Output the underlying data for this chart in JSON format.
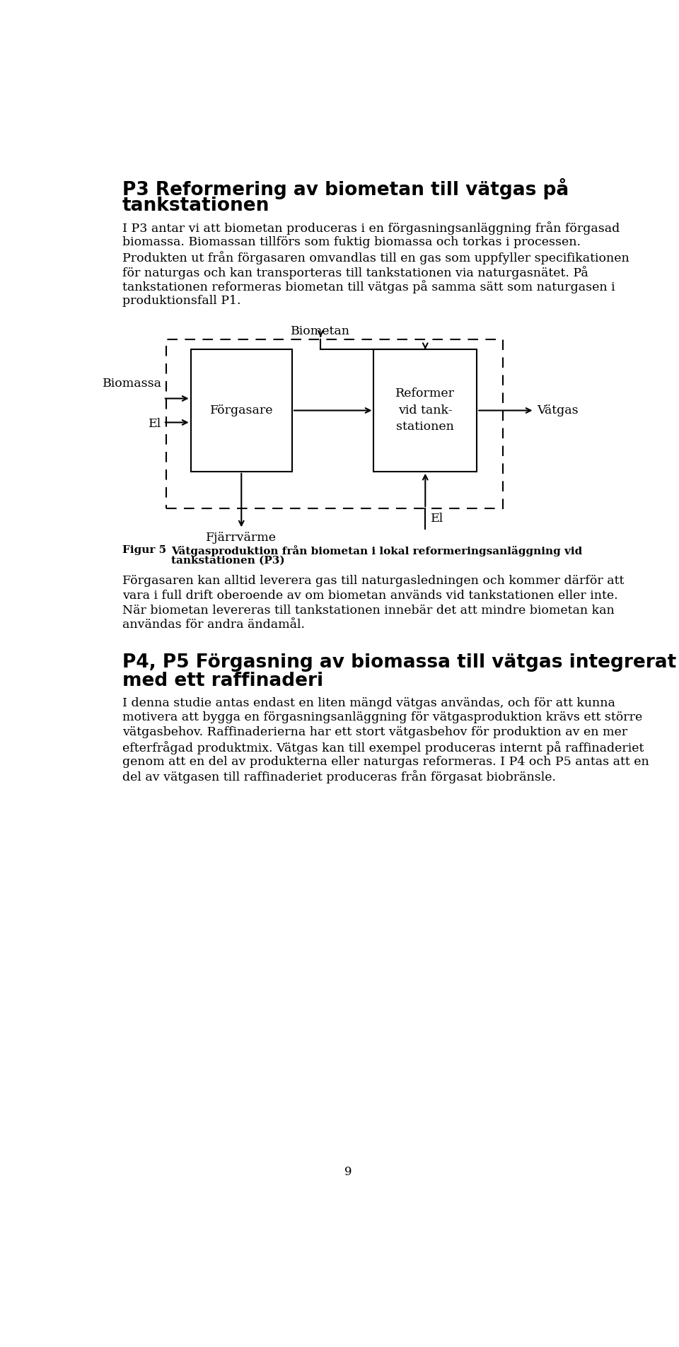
{
  "title1": "P3 Reformering av biometan till vätgas på",
  "title2": "tankstationen",
  "para1_lines": [
    "I P3 antar vi att biometan produceras i en förgasningsanläggning från förgasad",
    "biomassa. Biomassan tillförs som fuktig biomassa och torkas i processen.",
    "Produkten ut från förgasaren omvandlas till en gas som uppfyller specifikationen",
    "för naturgas och kan transporteras till tankstationen via naturgasnätet. På",
    "tankstationen reformeras biometan till vätgas på samma sätt som naturgasen i",
    "produktionsfall P1."
  ],
  "diagram_label_biometan": "Biometan",
  "diagram_label_biomassa": "Biomassa",
  "diagram_label_el1": "El",
  "diagram_label_forgasare": "Förgasare",
  "diagram_label_reformer": "Reformer\nvid tank-\nstationen",
  "diagram_label_vatgas": "Vätgas",
  "diagram_label_fjarrvärme": "Fjärrvärme",
  "diagram_label_el2": "El",
  "figur_label": "Figur 5",
  "figur_caption_line1": "Vätgasproduktion från biometan i lokal reformeringsanläggning vid",
  "figur_caption_line2": "tankstationen (P3)",
  "para2_lines": [
    "Förgasaren kan alltid leverera gas till naturgasledningen och kommer därför att",
    "vara i full drift oberoende av om biometan används vid tankstationen eller inte.",
    "När biometan levereras till tankstationen innebär det att mindre biometan kan",
    "användas för andra ändamål."
  ],
  "title3a": "P4, P5 Förgasning av biomassa till vätgas integrerat",
  "title3b": "med ett raffinaderi",
  "para3_lines": [
    "I denna studie antas endast en liten mängd vätgas användas, och för att kunna",
    "motivera att bygga en förgasningsanläggning för vätgasproduktion krävs ett större",
    "vätgasbehov. Raffinaderierna har ett stort vätgasbehov för produktion av en mer",
    "efterfrågad produktmix. Vätgas kan till exempel produceras internt på raffinaderiet",
    "genom att en del av produkterna eller naturgas reformeras. I P4 och P5 antas att en",
    "del av vätgasen till raffinaderiet produceras från förgasat biobränsle."
  ],
  "page_number": "9",
  "bg_color": "#ffffff",
  "text_color": "#000000"
}
